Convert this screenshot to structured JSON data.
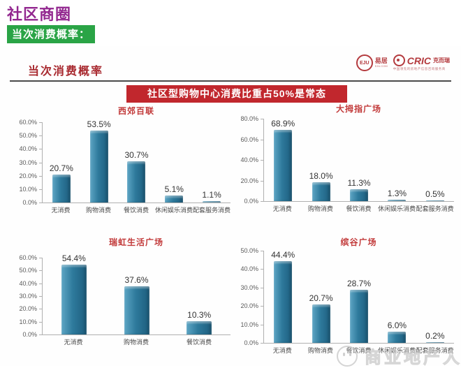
{
  "page": {
    "title": "社区商圈",
    "subtitle": "当次消费概率："
  },
  "slide": {
    "header_title": "当次消费概率",
    "banner": "社区型购物中心消费比重占50%是常态",
    "logos": {
      "eju_circle": "EJU",
      "eju_name": "易居",
      "eju_sub": "EJU.COM",
      "cric_name": "CRIC",
      "cric_cn": "克而瑞",
      "cric_tagline": "中国领先的房地产信息咨询服务商"
    },
    "watermark": "商业地产人"
  },
  "colors": {
    "title_purple": "#92278f",
    "subtitle_green": "#2aa446",
    "banner_red": "#c1272d",
    "chart_title_red": "#c23a3a",
    "bar_teal": "#2e7a9c"
  },
  "chart_data": [
    {
      "type": "bar",
      "title": "西郊百联",
      "categories": [
        "无消费",
        "购物消费",
        "餐饮消费",
        "休闲娱乐消费",
        "配套服务消费"
      ],
      "values": [
        20.7,
        53.5,
        30.7,
        5.1,
        1.1
      ],
      "value_labels": [
        "20.7%",
        "53.5%",
        "30.7%",
        "5.1%",
        "1.1%"
      ],
      "ylabel_format": "percent",
      "ylim": [
        0,
        60
      ],
      "ystep": 10,
      "grid": false,
      "legend": false
    },
    {
      "type": "bar",
      "title": "大拇指广场",
      "categories": [
        "无消费",
        "购物消费",
        "餐饮消费",
        "休闲娱乐消费",
        "配套服务消费"
      ],
      "values": [
        68.9,
        18.0,
        11.3,
        1.3,
        0.5
      ],
      "value_labels": [
        "68.9%",
        "18.0%",
        "11.3%",
        "1.3%",
        "0.5%"
      ],
      "ylabel_format": "percent",
      "ylim": [
        0,
        80
      ],
      "ystep": 20,
      "grid": false,
      "legend": false
    },
    {
      "type": "bar",
      "title": "瑞虹生活广场",
      "categories": [
        "无消费",
        "购物消费",
        "餐饮消费"
      ],
      "values": [
        54.4,
        37.6,
        10.3
      ],
      "value_labels": [
        "54.4%",
        "37.6%",
        "10.3%"
      ],
      "ylabel_format": "percent",
      "ylim": [
        0,
        60
      ],
      "ystep": 10,
      "grid": false,
      "legend": false
    },
    {
      "type": "bar",
      "title": "缤谷广场",
      "categories": [
        "无消费",
        "购物消费",
        "餐饮消费",
        "休闲娱乐消费",
        "配套服务消费"
      ],
      "values": [
        44.4,
        20.7,
        28.7,
        6.0,
        0.2
      ],
      "value_labels": [
        "44.4%",
        "20.7%",
        "28.7%",
        "6.0%",
        "0.2%"
      ],
      "ylabel_format": "percent",
      "ylim": [
        0,
        50
      ],
      "ystep": 10,
      "grid": false,
      "legend": false
    }
  ]
}
